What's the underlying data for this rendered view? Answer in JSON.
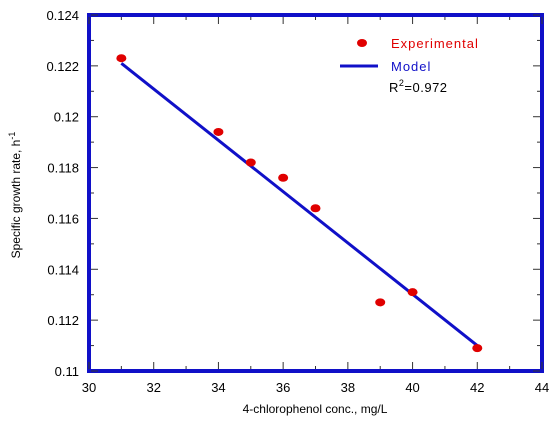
{
  "chart_data": {
    "type": "scatter",
    "xlabel": "4-chlorophenol conc., mg/L",
    "ylabel_main": "Specific growth rate, h",
    "ylabel_sup": "-1",
    "xlim": [
      30,
      44
    ],
    "ylim": [
      0.11,
      0.124
    ],
    "x_ticks": [
      30,
      32,
      34,
      36,
      38,
      40,
      42,
      44
    ],
    "y_ticks": [
      0.11,
      0.112,
      0.114,
      0.116,
      0.118,
      0.12,
      0.122,
      0.124
    ],
    "y_tick_labels": [
      "0.11",
      "0.112",
      "0.114",
      "0.116",
      "0.118",
      "0.12",
      "0.122",
      "0.124"
    ],
    "grid": false,
    "legend_position": "top-right",
    "series": [
      {
        "name": "Experimental",
        "kind": "points",
        "color": "#e00000",
        "x": [
          31,
          34,
          35,
          36,
          37,
          39,
          40,
          42
        ],
        "y": [
          0.1223,
          0.1194,
          0.1182,
          0.1176,
          0.1164,
          0.1127,
          0.1131,
          0.1109
        ]
      },
      {
        "name": "Model",
        "kind": "line",
        "color": "#1010c8",
        "x": [
          31,
          42
        ],
        "y": [
          0.1221,
          0.111
        ]
      }
    ],
    "annotation": {
      "r2_prefix": "R",
      "r2_sup": "2",
      "r2_value": "=0.972"
    },
    "frame_color": "#1010c8"
  }
}
